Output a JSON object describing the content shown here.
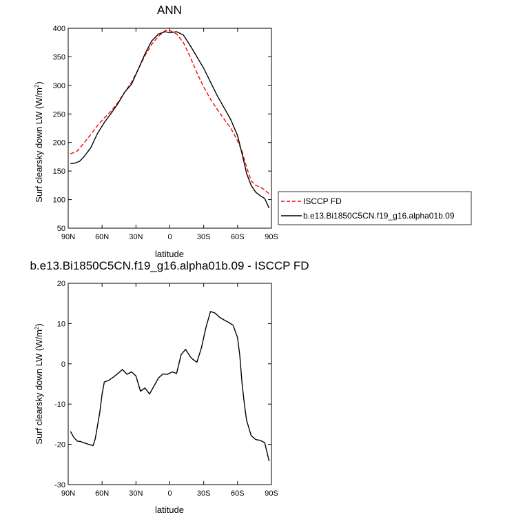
{
  "chart_data": [
    {
      "type": "line",
      "title": "ANN",
      "xlabel": "latitude",
      "ylabel": "Surf clearsky down LW (W/m",
      "ylabel_sup": "2",
      "ylabel_end": ")",
      "xlim": [
        90,
        -90
      ],
      "ylim": [
        50,
        400
      ],
      "xticks": [
        90,
        60,
        30,
        0,
        -30,
        -60,
        -90
      ],
      "xtick_labels": [
        "90N",
        "60N",
        "30N",
        "0",
        "30S",
        "60S",
        "90S"
      ],
      "yticks": [
        50,
        100,
        150,
        200,
        250,
        300,
        350,
        400
      ],
      "ytick_labels": [
        "50",
        "100",
        "150",
        "200",
        "250",
        "300",
        "350",
        "400"
      ],
      "legend": "right",
      "series": [
        {
          "name": "ISCCP FD",
          "color": "#ff0000",
          "style": "dashed",
          "x": [
            88,
            82,
            76,
            70,
            64,
            58,
            52,
            46,
            40,
            34,
            28,
            22,
            16,
            10,
            4,
            0,
            -6,
            -12,
            -18,
            -24,
            -30,
            -36,
            -42,
            -48,
            -54,
            -60,
            -64,
            -68,
            -72,
            -76,
            -80,
            -84,
            -88
          ],
          "y": [
            180,
            185,
            199,
            214,
            230,
            243,
            255,
            270,
            288,
            305,
            328,
            352,
            372,
            386,
            396,
            396,
            390,
            375,
            350,
            322,
            297,
            276,
            258,
            241,
            225,
            203,
            184,
            157,
            133,
            125,
            122,
            117,
            110
          ]
        },
        {
          "name": "b.e13.Bi1850C5CN.f19_g16.alpha01b.09",
          "color": "#000000",
          "style": "solid",
          "x": [
            88,
            84,
            80,
            76,
            70,
            64,
            58,
            52,
            46,
            40,
            34,
            28,
            22,
            16,
            10,
            4,
            0,
            -6,
            -12,
            -18,
            -24,
            -30,
            -36,
            -42,
            -48,
            -54,
            -60,
            -64,
            -68,
            -72,
            -76,
            -80,
            -84,
            -88
          ],
          "y": [
            163,
            164,
            167,
            175,
            191,
            216,
            235,
            251,
            268,
            288,
            302,
            328,
            355,
            378,
            390,
            394,
            392,
            394,
            388,
            370,
            350,
            330,
            306,
            282,
            261,
            240,
            212,
            180,
            146,
            125,
            113,
            107,
            102,
            85
          ]
        }
      ]
    },
    {
      "type": "line",
      "title": "b.e13.Bi1850C5CN.f19_g16.alpha01b.09 - ISCCP FD",
      "xlabel": "latitude",
      "ylabel": "Surf clearsky down LW (W/m",
      "ylabel_sup": "2",
      "ylabel_end": ")",
      "xlim": [
        90,
        -90
      ],
      "ylim": [
        -30,
        20
      ],
      "xticks": [
        90,
        60,
        30,
        0,
        -30,
        -60,
        -90
      ],
      "xtick_labels": [
        "90N",
        "60N",
        "30N",
        "0",
        "30S",
        "60S",
        "90S"
      ],
      "yticks": [
        -30,
        -20,
        -10,
        0,
        10,
        20
      ],
      "ytick_labels": [
        "-30",
        "-20",
        "-10",
        "0",
        "10",
        "20"
      ],
      "series": [
        {
          "color": "#000000",
          "style": "solid",
          "x": [
            88,
            85,
            82,
            79,
            76,
            72,
            68,
            66,
            62,
            60,
            58,
            54,
            50,
            46,
            42,
            38,
            34,
            30,
            26,
            22,
            18,
            14,
            10,
            6,
            2,
            -2,
            -6,
            -10,
            -14,
            -18,
            -20,
            -24,
            -28,
            -32,
            -36,
            -40,
            -44,
            -48,
            -52,
            -56,
            -60,
            -62,
            -64,
            -66,
            -68,
            -72,
            -76,
            -80,
            -84,
            -88
          ],
          "y": [
            -16.8,
            -18.3,
            -19.2,
            -19.3,
            -19.6,
            -20.0,
            -20.3,
            -18.6,
            -12.0,
            -7.5,
            -4.5,
            -4.1,
            -3.3,
            -2.4,
            -1.4,
            -2.6,
            -2.0,
            -3.0,
            -6.8,
            -6.0,
            -7.5,
            -5.5,
            -3.5,
            -2.5,
            -2.6,
            -2.0,
            -2.4,
            2.3,
            3.6,
            1.8,
            1.2,
            0.4,
            4.0,
            9.0,
            13.0,
            12.6,
            11.6,
            10.9,
            10.3,
            9.6,
            6.5,
            2.0,
            -5.0,
            -10.0,
            -14.0,
            -17.8,
            -18.8,
            -19.0,
            -19.6,
            -24.2
          ]
        }
      ]
    }
  ]
}
